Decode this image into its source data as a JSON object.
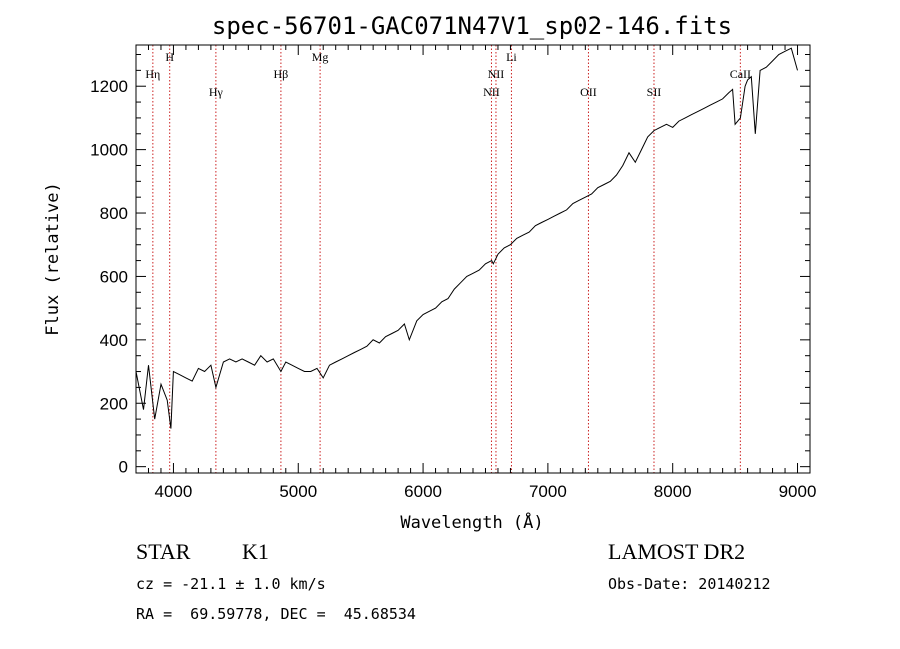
{
  "chart_data": {
    "type": "line",
    "title": "spec-56701-GAC071N47V1_sp02-146.fits",
    "xlabel": "Wavelength (Å)",
    "ylabel": "Flux (relative)",
    "xlim": [
      3700,
      9100
    ],
    "ylim": [
      -20,
      1330
    ],
    "xticks": [
      4000,
      5000,
      6000,
      7000,
      8000,
      9000
    ],
    "yticks": [
      0,
      200,
      400,
      600,
      800,
      1000,
      1200
    ],
    "grid": false,
    "series": [
      {
        "x": [
          3700,
          3760,
          3800,
          3850,
          3900,
          3950,
          3980,
          4000,
          4050,
          4100,
          4150,
          4200,
          4250,
          4300,
          4340,
          4400,
          4450,
          4500,
          4550,
          4600,
          4650,
          4700,
          4750,
          4800,
          4861,
          4900,
          4950,
          5000,
          5050,
          5100,
          5150,
          5200,
          5250,
          5300,
          5350,
          5400,
          5450,
          5500,
          5550,
          5600,
          5650,
          5700,
          5750,
          5800,
          5850,
          5890,
          5950,
          6000,
          6050,
          6100,
          6150,
          6200,
          6250,
          6300,
          6350,
          6400,
          6450,
          6500,
          6550,
          6563,
          6600,
          6650,
          6700,
          6750,
          6800,
          6850,
          6900,
          6950,
          7000,
          7050,
          7100,
          7150,
          7200,
          7250,
          7300,
          7350,
          7400,
          7450,
          7500,
          7550,
          7600,
          7650,
          7700,
          7750,
          7800,
          7850,
          7900,
          7950,
          8000,
          8050,
          8100,
          8150,
          8200,
          8250,
          8300,
          8350,
          8400,
          8450,
          8480,
          8500,
          8542,
          8580,
          8600,
          8630,
          8662,
          8700,
          8750,
          8800,
          8850,
          8900,
          8950,
          9000
        ],
        "y": [
          300,
          180,
          320,
          150,
          260,
          210,
          120,
          300,
          290,
          280,
          270,
          310,
          300,
          320,
          250,
          330,
          340,
          330,
          340,
          330,
          320,
          350,
          330,
          340,
          300,
          330,
          320,
          310,
          300,
          300,
          310,
          280,
          320,
          330,
          340,
          350,
          360,
          370,
          380,
          400,
          390,
          410,
          420,
          430,
          450,
          400,
          460,
          480,
          490,
          500,
          520,
          530,
          560,
          580,
          600,
          610,
          620,
          640,
          650,
          640,
          670,
          690,
          700,
          720,
          730,
          740,
          760,
          770,
          780,
          790,
          800,
          810,
          830,
          840,
          850,
          860,
          880,
          890,
          900,
          920,
          950,
          990,
          960,
          1000,
          1040,
          1060,
          1070,
          1080,
          1070,
          1090,
          1100,
          1110,
          1120,
          1130,
          1140,
          1150,
          1160,
          1180,
          1190,
          1080,
          1100,
          1200,
          1220,
          1230,
          1050,
          1250,
          1260,
          1280,
          1300,
          1310,
          1320,
          1250
        ]
      }
    ],
    "spectral_lines": [
      {
        "label": "Hη",
        "wavelength": 3835,
        "row": "upper"
      },
      {
        "label": "H",
        "wavelength": 3970,
        "row": "top"
      },
      {
        "label": "Hγ",
        "wavelength": 4340,
        "row": "lower"
      },
      {
        "label": "Hβ",
        "wavelength": 4861,
        "row": "upper"
      },
      {
        "label": "Mg",
        "wavelength": 5175,
        "row": "top"
      },
      {
        "label": "NII",
        "wavelength": 6548,
        "row": "lower"
      },
      {
        "label": "NII",
        "wavelength": 6584,
        "row": "upper"
      },
      {
        "label": "Li",
        "wavelength": 6708,
        "row": "top"
      },
      {
        "label": "OII",
        "wavelength": 7325,
        "row": "lower"
      },
      {
        "label": "SII",
        "wavelength": 7850,
        "row": "lower"
      },
      {
        "label": "CaII",
        "wavelength": 8542,
        "row": "upper"
      }
    ]
  },
  "info": {
    "object_class": "STAR",
    "subclass": "K1",
    "redshift_line": "cz = -21.1 ± 1.0 km/s",
    "coords_line": "RA =  69.59778, DEC =  45.68534",
    "survey": "LAMOST DR2",
    "obs_date": "Obs-Date: 20140212"
  },
  "colors": {
    "spectrum": "#000000",
    "line_marker": "#cc2222"
  }
}
